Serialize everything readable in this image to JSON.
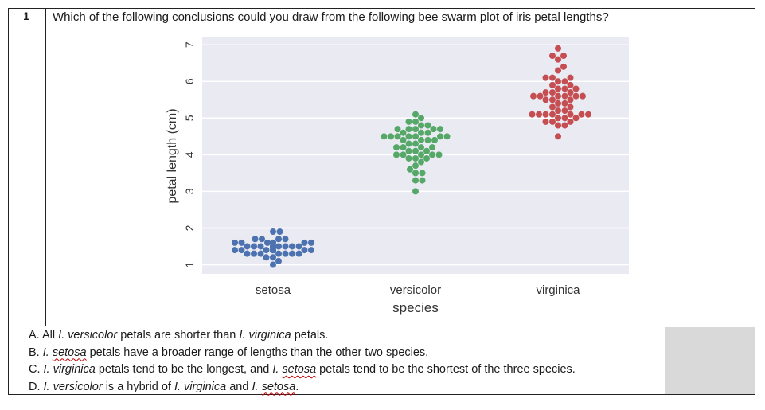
{
  "question": {
    "number": "1",
    "text": "Which of the following conclusions could you draw from the following bee swarm plot of iris petal lengths?"
  },
  "options": [
    {
      "letter": "A.",
      "parts": [
        {
          "t": "All ",
          "i": false,
          "s": false
        },
        {
          "t": "I. versicolor",
          "i": true,
          "s": false
        },
        {
          "t": " petals are shorter than ",
          "i": false,
          "s": false
        },
        {
          "t": "I. virginica",
          "i": true,
          "s": false
        },
        {
          "t": " petals.",
          "i": false,
          "s": false
        }
      ]
    },
    {
      "letter": "B.",
      "parts": [
        {
          "t": "I. ",
          "i": true,
          "s": false
        },
        {
          "t": "setosa",
          "i": true,
          "s": true
        },
        {
          "t": " petals have a broader range of lengths than the other two species.",
          "i": false,
          "s": false
        }
      ]
    },
    {
      "letter": "C.",
      "parts": [
        {
          "t": "I. virginica",
          "i": true,
          "s": false
        },
        {
          "t": " petals tend to be the longest, and ",
          "i": false,
          "s": false
        },
        {
          "t": "I. ",
          "i": true,
          "s": false
        },
        {
          "t": "setosa",
          "i": true,
          "s": true
        },
        {
          "t": " petals tend to be the shortest of the three species.",
          "i": false,
          "s": false
        }
      ]
    },
    {
      "letter": "D.",
      "parts": [
        {
          "t": "I. versicolor",
          "i": true,
          "s": false
        },
        {
          "t": " is a hybrid of ",
          "i": false,
          "s": false
        },
        {
          "t": "I. virginica",
          "i": true,
          "s": false
        },
        {
          "t": " and ",
          "i": false,
          "s": false
        },
        {
          "t": "I. ",
          "i": true,
          "s": false
        },
        {
          "t": "setosa",
          "i": true,
          "s": true
        },
        {
          "t": ".",
          "i": false,
          "s": false
        }
      ]
    }
  ],
  "chart_data": {
    "type": "scatter",
    "subtype": "beeswarm",
    "xlabel": "species",
    "ylabel": "petal length (cm)",
    "categories": [
      "setosa",
      "versicolor",
      "virginica"
    ],
    "ylim": [
      0.75,
      7.2
    ],
    "yticks": [
      1,
      2,
      3,
      4,
      5,
      6,
      7
    ],
    "grid": true,
    "background": "#eaeaf2",
    "colors": [
      "#4c72b0",
      "#55a868",
      "#c44e52"
    ],
    "series": [
      {
        "name": "setosa",
        "values": [
          1.4,
          1.4,
          1.3,
          1.5,
          1.4,
          1.7,
          1.4,
          1.5,
          1.4,
          1.5,
          1.5,
          1.6,
          1.4,
          1.1,
          1.2,
          1.5,
          1.3,
          1.4,
          1.7,
          1.5,
          1.7,
          1.5,
          1.0,
          1.7,
          1.9,
          1.6,
          1.6,
          1.5,
          1.4,
          1.6,
          1.6,
          1.5,
          1.5,
          1.4,
          1.5,
          1.2,
          1.3,
          1.4,
          1.3,
          1.5,
          1.3,
          1.3,
          1.3,
          1.6,
          1.9,
          1.4,
          1.6,
          1.4,
          1.5,
          1.4
        ]
      },
      {
        "name": "versicolor",
        "values": [
          4.7,
          4.5,
          4.9,
          4.0,
          4.6,
          4.5,
          4.7,
          3.3,
          4.6,
          3.9,
          3.5,
          4.2,
          4.0,
          4.7,
          3.6,
          4.4,
          4.5,
          4.1,
          4.5,
          3.9,
          4.8,
          4.0,
          4.9,
          4.7,
          4.3,
          4.4,
          4.8,
          5.0,
          4.5,
          3.5,
          3.8,
          3.7,
          3.9,
          5.1,
          4.5,
          4.5,
          4.7,
          4.4,
          4.1,
          4.0,
          4.4,
          4.6,
          4.0,
          3.3,
          4.2,
          4.2,
          4.2,
          4.3,
          3.0,
          4.1
        ]
      },
      {
        "name": "virginica",
        "values": [
          6.0,
          5.1,
          5.9,
          5.6,
          5.8,
          6.6,
          4.5,
          6.3,
          5.8,
          6.1,
          5.1,
          5.3,
          5.5,
          5.0,
          5.1,
          5.3,
          5.5,
          6.7,
          6.9,
          5.0,
          5.7,
          4.9,
          6.7,
          4.9,
          5.7,
          6.0,
          4.8,
          4.9,
          5.6,
          5.8,
          6.1,
          6.4,
          5.6,
          5.1,
          5.6,
          6.1,
          5.6,
          5.5,
          4.8,
          5.4,
          5.6,
          5.1,
          5.1,
          5.9,
          5.7,
          5.2,
          5.0,
          5.2,
          5.4,
          5.1
        ]
      }
    ]
  }
}
